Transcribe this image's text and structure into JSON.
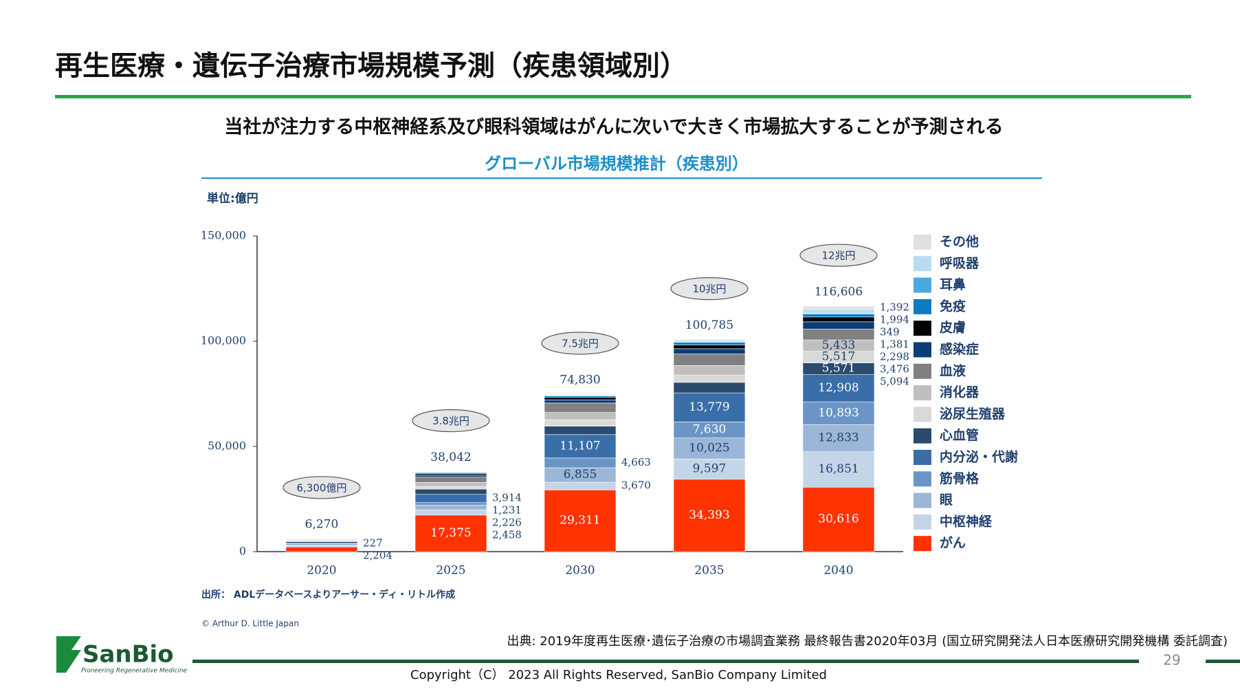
{
  "title": "再生医療・遺伝子治療市場規模予測（疾患領域別）",
  "subtitle": "当社が注力する中枢神経系及び眼科領域はがんに次いで大きく市場拡大することが予測される",
  "footnote": "出典: 2019年度再生医療･遺伝子治療の市場調査業務 最終報告書2020年03月 (国立研究開発法人日本医療研究開発機構 委託調査)",
  "copyright": "Copyright（C） 2023 All Rights Reserved, SanBio Company Limited",
  "page_number": "29",
  "logo": {
    "name": "SanBio",
    "tagline": "Pioneering Regenerative Medicine"
  },
  "chart_data": {
    "type": "stacked_bar",
    "title": "グローバル市場規模推計（疾患別）",
    "unit_label": "単位:億円",
    "source": "出所： ADLデータベースよりアーサー・ディ・リトル作成",
    "credit": "© Arthur D. Little Japan",
    "categories": [
      "2020",
      "2025",
      "2030",
      "2035",
      "2040"
    ],
    "ylim": [
      0,
      150000
    ],
    "yticks": [
      0,
      {
        "value": 50000,
        "label": "50,000"
      },
      {
        "value": 100000,
        "label": "100,000"
      },
      {
        "value": 150000,
        "label": "150,000"
      }
    ],
    "totals": [
      6270,
      38042,
      74830,
      100785,
      116606
    ],
    "total_labels": [
      "6,270",
      "38,042",
      "74,830",
      "100,785",
      "116,606"
    ],
    "annotations": [
      "6,300億円",
      "3.8兆円",
      "7.5兆円",
      "10兆円",
      "12兆円"
    ],
    "series": [
      {
        "name": "がん",
        "color": "#ff3300",
        "values": [
          2204,
          17375,
          29311,
          34393,
          30616
        ],
        "value_labels": [
          "2,204",
          "17,375",
          "29,311",
          "34,393",
          "30,616"
        ]
      },
      {
        "name": "中枢神経",
        "color": "#c5d5e8",
        "values": [
          500,
          2458,
          3670,
          9597,
          16851
        ],
        "value_labels": [
          null,
          "2,458",
          "3,670",
          "9,597",
          "16,851"
        ]
      },
      {
        "name": "眼",
        "color": "#9bb6d6",
        "values": [
          400,
          2226,
          6855,
          10025,
          12833
        ],
        "value_labels": [
          null,
          "2,226",
          "6,855",
          "10,025",
          "12,833"
        ]
      },
      {
        "name": "筋骨格",
        "color": "#6a95c6",
        "values": [
          600,
          1231,
          4663,
          7630,
          10893
        ],
        "value_labels": [
          null,
          "1,231",
          "4,663",
          "7,630",
          "10,893"
        ]
      },
      {
        "name": "内分泌・代謝",
        "color": "#3a6ea8",
        "values": [
          227,
          3914,
          11107,
          13779,
          12908
        ],
        "value_labels": [
          "227",
          "3,914",
          "11,107",
          "13,779",
          "12,908"
        ]
      },
      {
        "name": "心血管",
        "color": "#2a4a6e",
        "values": [
          800,
          2500,
          4000,
          5000,
          5571
        ],
        "value_labels": [
          null,
          null,
          null,
          null,
          "5,571"
        ]
      },
      {
        "name": "泌尿生殖器",
        "color": "#d9d9d9",
        "values": [
          300,
          1200,
          3000,
          3500,
          5517
        ],
        "value_labels": [
          null,
          null,
          null,
          null,
          "5,517"
        ]
      },
      {
        "name": "消化器",
        "color": "#bfbfbf",
        "values": [
          400,
          2000,
          3500,
          4500,
          5433
        ],
        "value_labels": [
          null,
          null,
          null,
          null,
          "5,433"
        ]
      },
      {
        "name": "血液",
        "color": "#808080",
        "values": [
          300,
          2500,
          4500,
          5500,
          5094
        ],
        "value_labels": [
          null,
          null,
          null,
          null,
          "5,094"
        ]
      },
      {
        "name": "感染症",
        "color": "#0b3d78",
        "values": [
          200,
          900,
          1500,
          2500,
          3476
        ],
        "value_labels": [
          null,
          null,
          null,
          null,
          "3,476"
        ]
      },
      {
        "name": "皮膚",
        "color": "#000000",
        "values": [
          150,
          700,
          1200,
          1800,
          2298
        ],
        "value_labels": [
          null,
          null,
          null,
          null,
          "2,298"
        ]
      },
      {
        "name": "免疫",
        "color": "#0a7bc4",
        "values": [
          100,
          500,
          700,
          1200,
          1381
        ],
        "value_labels": [
          null,
          null,
          null,
          null,
          "1,381"
        ]
      },
      {
        "name": "耳鼻",
        "color": "#4aa8e0",
        "values": [
          20,
          100,
          200,
          300,
          349
        ],
        "value_labels": [
          null,
          null,
          null,
          null,
          "349"
        ]
      },
      {
        "name": "呼吸器",
        "color": "#b8dcf3",
        "values": [
          40,
          300,
          400,
          700,
          1994
        ],
        "value_labels": [
          null,
          null,
          null,
          null,
          "1,994"
        ]
      },
      {
        "name": "その他",
        "color": "#e0e0e0",
        "values": [
          29,
          138,
          224,
          361,
          1392
        ],
        "value_labels": [
          null,
          null,
          null,
          null,
          "1,392"
        ]
      }
    ]
  }
}
